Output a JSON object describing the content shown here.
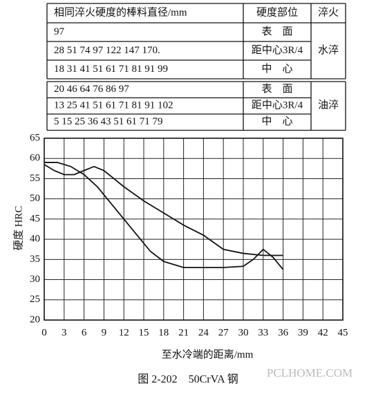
{
  "table": {
    "header": [
      "相同淬火硬度的棒料直径/mm",
      "硬度部位",
      "淬火"
    ],
    "groups": [
      {
        "quench": "水淬",
        "rows": [
          [
            "97",
            "表　面"
          ],
          [
            "28 51 74 97 122 147 170.",
            "距中心3R/4"
          ],
          [
            "18 31 41 51 61 71 81 91 99",
            "中　心"
          ]
        ]
      },
      {
        "quench": "油淬",
        "rows": [
          [
            "20 46 64 76 86 97",
            "表　面"
          ],
          [
            "13 25 41 51 61 71 81 91 102",
            "距中心3R/4"
          ],
          [
            "5 15 25 36 43 51 61 71 79",
            "中　心"
          ]
        ]
      }
    ]
  },
  "chart_data": {
    "type": "line",
    "xlabel": "至水冷端的距离/mm",
    "ylabel": "硬度 HRC",
    "xlim": [
      0,
      45
    ],
    "xticks": [
      0,
      3,
      6,
      9,
      12,
      15,
      18,
      21,
      24,
      27,
      30,
      33,
      36,
      39,
      42,
      45
    ],
    "ylim": [
      20,
      65
    ],
    "yticks": [
      20,
      25,
      30,
      35,
      40,
      45,
      50,
      55,
      60,
      65
    ],
    "grid": true,
    "series": [
      {
        "color": "#111111",
        "x": [
          0,
          1.5,
          3,
          4.5,
          6,
          7.5,
          9,
          12,
          15,
          18,
          21,
          24,
          27,
          30,
          33,
          36
        ],
        "values": [
          58.5,
          57,
          56,
          56,
          57,
          58,
          57,
          53,
          49.5,
          46.5,
          43.5,
          41,
          37.5,
          36.5,
          36,
          36
        ]
      },
      {
        "color": "#111111",
        "x": [
          0,
          2,
          4,
          6,
          8,
          10,
          12,
          14,
          16,
          18,
          21,
          24,
          27,
          30,
          31.5,
          33,
          34.5,
          36
        ],
        "values": [
          59,
          59,
          58,
          56,
          53,
          49,
          45,
          41,
          37,
          34.5,
          33,
          33,
          33,
          33.3,
          35,
          37.5,
          35.5,
          32.5
        ]
      }
    ]
  },
  "caption": "图 2-202　50CrVA 钢",
  "watermark": "PCLHOME.COM"
}
